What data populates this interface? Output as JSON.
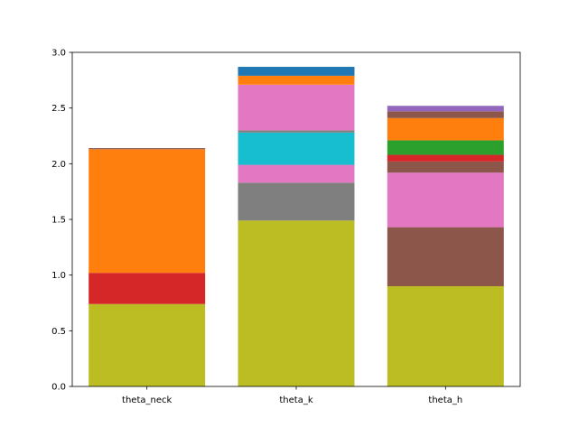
{
  "chart_data": {
    "type": "bar",
    "stacked": true,
    "categories": [
      "theta_neck",
      "theta_k",
      "theta_h"
    ],
    "ylim": [
      0,
      3.0
    ],
    "yticks": [
      "0.0",
      "0.5",
      "1.0",
      "1.5",
      "2.0",
      "2.5",
      "3.0"
    ],
    "ytick_values": [
      0,
      0.5,
      1.0,
      1.5,
      2.0,
      2.5,
      3.0
    ],
    "grid": false,
    "bars": [
      {
        "category": "theta_neck",
        "segments": [
          {
            "value": 0.74,
            "color": "#bcbd22"
          },
          {
            "value": 0.28,
            "color": "#d62728"
          },
          {
            "value": 1.11,
            "color": "#ff7f0e"
          },
          {
            "value": 0.01,
            "color": "#8c564b"
          }
        ]
      },
      {
        "category": "theta_k",
        "segments": [
          {
            "value": 1.49,
            "color": "#bcbd22"
          },
          {
            "value": 0.34,
            "color": "#7f7f7f"
          },
          {
            "value": 0.16,
            "color": "#e377c2"
          },
          {
            "value": 0.29,
            "color": "#17becf"
          },
          {
            "value": 0.02,
            "color": "#7f7f7f"
          },
          {
            "value": 0.41,
            "color": "#e377c2"
          },
          {
            "value": 0.08,
            "color": "#ff7f0e"
          },
          {
            "value": 0.08,
            "color": "#1f77b4"
          }
        ]
      },
      {
        "category": "theta_h",
        "segments": [
          {
            "value": 0.9,
            "color": "#bcbd22"
          },
          {
            "value": 0.53,
            "color": "#8c564b"
          },
          {
            "value": 0.49,
            "color": "#e377c2"
          },
          {
            "value": 0.1,
            "color": "#8c564b"
          },
          {
            "value": 0.06,
            "color": "#d62728"
          },
          {
            "value": 0.13,
            "color": "#2ca02c"
          },
          {
            "value": 0.2,
            "color": "#ff7f0e"
          },
          {
            "value": 0.06,
            "color": "#8c564b"
          },
          {
            "value": 0.05,
            "color": "#9467bd"
          }
        ]
      }
    ]
  }
}
